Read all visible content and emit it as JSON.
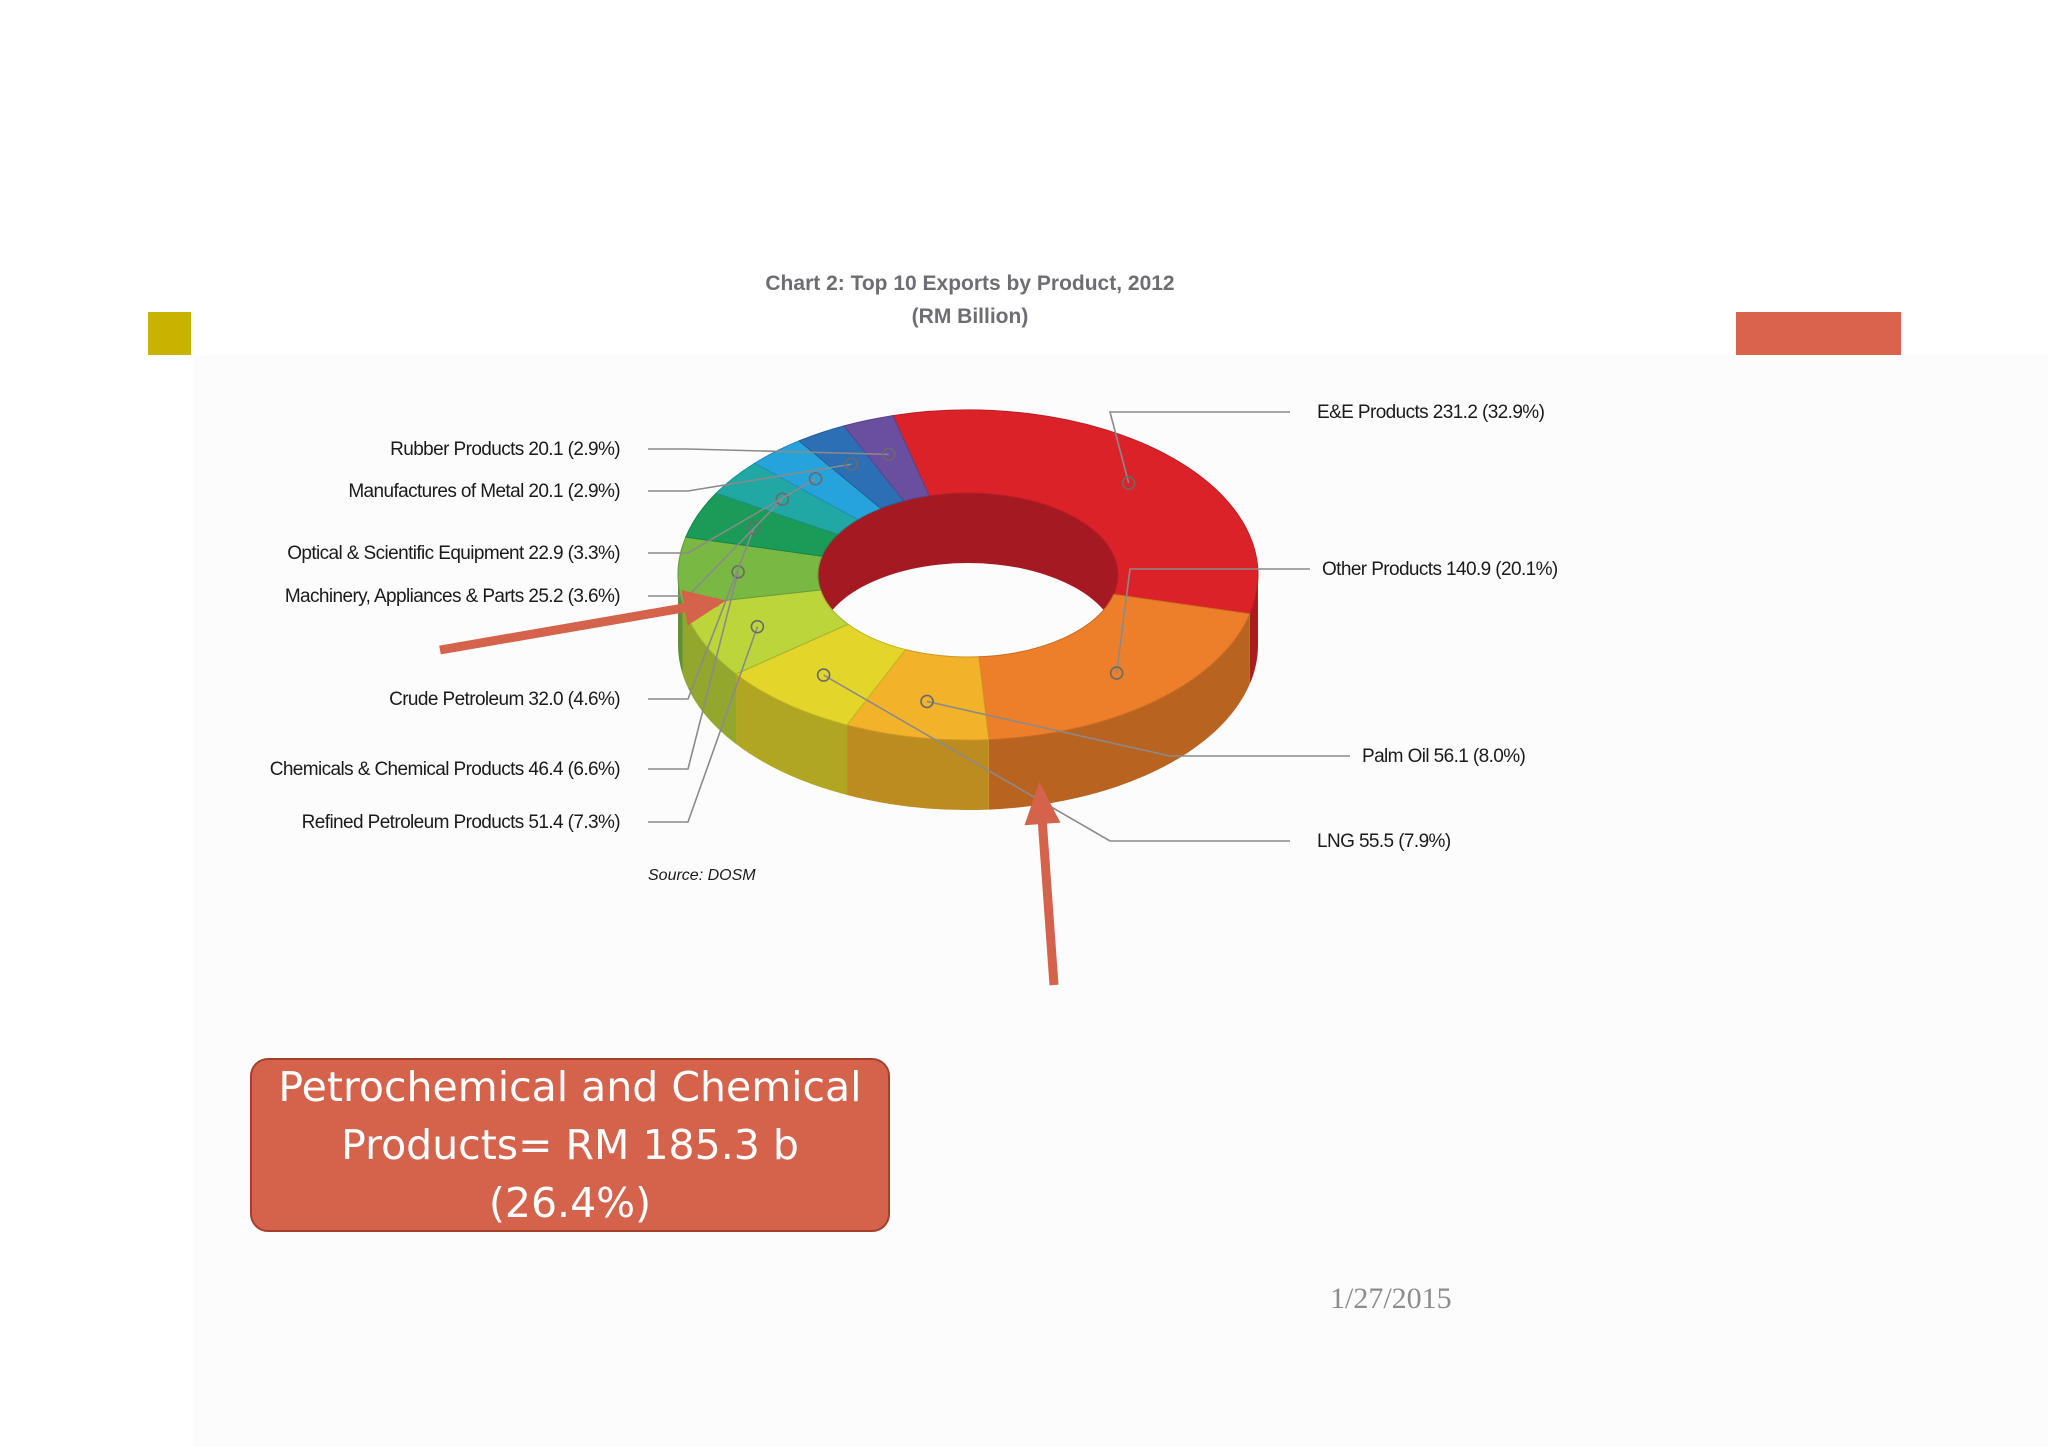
{
  "slide": {
    "accent_left_color": "#c9b300",
    "accent_right_color": "#d9634b",
    "date": "1/27/2015"
  },
  "callout": {
    "text": "Petrochemical and Chemical Products= RM 185.3 b (26.4%)",
    "color": "#d5624b"
  },
  "arrow_color": "#d5624b",
  "chart_data": {
    "type": "pie",
    "title": "Chart 2: Top 10 Exports by Product, 2012",
    "subtitle": "(RM Billion)",
    "source": "Source: DOSM",
    "slices": [
      {
        "label": "E&E Products 231.2 (32.9%)",
        "value": 231.2,
        "percent": 32.9,
        "color": "#dc2229"
      },
      {
        "label": "Other Products 140.9 (20.1%)",
        "value": 140.9,
        "percent": 20.1,
        "color": "#ed7f2a"
      },
      {
        "label": "Palm Oil 56.1 (8.0%)",
        "value": 56.1,
        "percent": 8.0,
        "color": "#f2b32a"
      },
      {
        "label": "LNG 55.5 (7.9%)",
        "value": 55.5,
        "percent": 7.9,
        "color": "#e3d52a"
      },
      {
        "label": "Refined Petroleum Products 51.4 (7.3%)",
        "value": 51.4,
        "percent": 7.3,
        "color": "#bcd53a"
      },
      {
        "label": "Chemicals & Chemical Products 46.4 (6.6%)",
        "value": 46.4,
        "percent": 6.6,
        "color": "#78b843"
      },
      {
        "label": "Crude Petroleum 32.0 (4.6%)",
        "value": 32.0,
        "percent": 4.6,
        "color": "#1a9c58"
      },
      {
        "label": "Machinery, Appliances & Parts 25.2 (3.6%)",
        "value": 25.2,
        "percent": 3.6,
        "color": "#21a8a4"
      },
      {
        "label": "Optical & Scientific Equipment 22.9 (3.3%)",
        "value": 22.9,
        "percent": 3.3,
        "color": "#27a3dc"
      },
      {
        "label": "Manufactures of Metal 20.1 (2.9%)",
        "value": 20.1,
        "percent": 2.9,
        "color": "#2c6fb4"
      },
      {
        "label": "Rubber Products 20.1 (2.9%)",
        "value": 20.1,
        "percent": 2.9,
        "color": "#6a4fa0"
      }
    ]
  }
}
